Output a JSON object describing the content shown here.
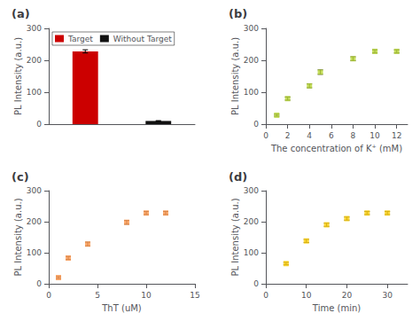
{
  "chart_data": [
    {
      "type": "bar",
      "title": "(a)",
      "categories": [
        "Target",
        "Without Target"
      ],
      "values": [
        228,
        10
      ],
      "errors": [
        5,
        1
      ],
      "colors": [
        "#cc0000",
        "#111111"
      ],
      "ylim": [
        0,
        300
      ],
      "yticks": [
        0,
        100,
        200,
        300
      ],
      "ylabel": "PL Intensity (a.u.)",
      "legend": "upper left",
      "tick_labels": "y",
      "grid": false
    },
    {
      "type": "scatter",
      "title": "(b)",
      "x": [
        1,
        2,
        4,
        5,
        8,
        10,
        12
      ],
      "values": [
        28,
        80,
        120,
        163,
        205,
        228,
        228
      ],
      "errors": [
        3,
        5,
        6,
        7,
        6,
        5,
        5
      ],
      "xlim": [
        0,
        13
      ],
      "xticks": [
        0,
        2,
        4,
        6,
        8,
        10,
        12
      ],
      "ylim": [
        0,
        300
      ],
      "yticks": [
        0,
        100,
        200,
        300
      ],
      "xlabel": "The concentration of K⁺ (mM)",
      "ylabel": "PL Intensity (a.u.)",
      "marker": "square",
      "grid": false
    },
    {
      "type": "scatter",
      "title": "(c)",
      "x": [
        1,
        2,
        4,
        8,
        10,
        12
      ],
      "values": [
        20,
        83,
        128,
        198,
        228,
        228
      ],
      "errors": [
        3,
        5,
        6,
        6,
        5,
        5
      ],
      "xlim": [
        0,
        15
      ],
      "xticks": [
        0,
        5,
        10,
        15
      ],
      "ylim": [
        0,
        300
      ],
      "yticks": [
        0,
        100,
        200,
        300
      ],
      "xlabel": "ThT (uM)",
      "ylabel": "PL Intensity (a.u.)",
      "marker": "square",
      "grid": false
    },
    {
      "type": "scatter",
      "title": "(d)",
      "x": [
        5,
        10,
        15,
        20,
        25,
        30
      ],
      "values": [
        65,
        138,
        190,
        210,
        228,
        228
      ],
      "errors": [
        4,
        5,
        5,
        5,
        5,
        5
      ],
      "xlim": [
        0,
        35
      ],
      "xticks": [
        0,
        10,
        20,
        30
      ],
      "ylim": [
        0,
        300
      ],
      "yticks": [
        0,
        100,
        200,
        300
      ],
      "xlabel": "Time (min)",
      "ylabel": "PL Intensity (a.u.)",
      "marker": "square",
      "grid": false
    }
  ]
}
